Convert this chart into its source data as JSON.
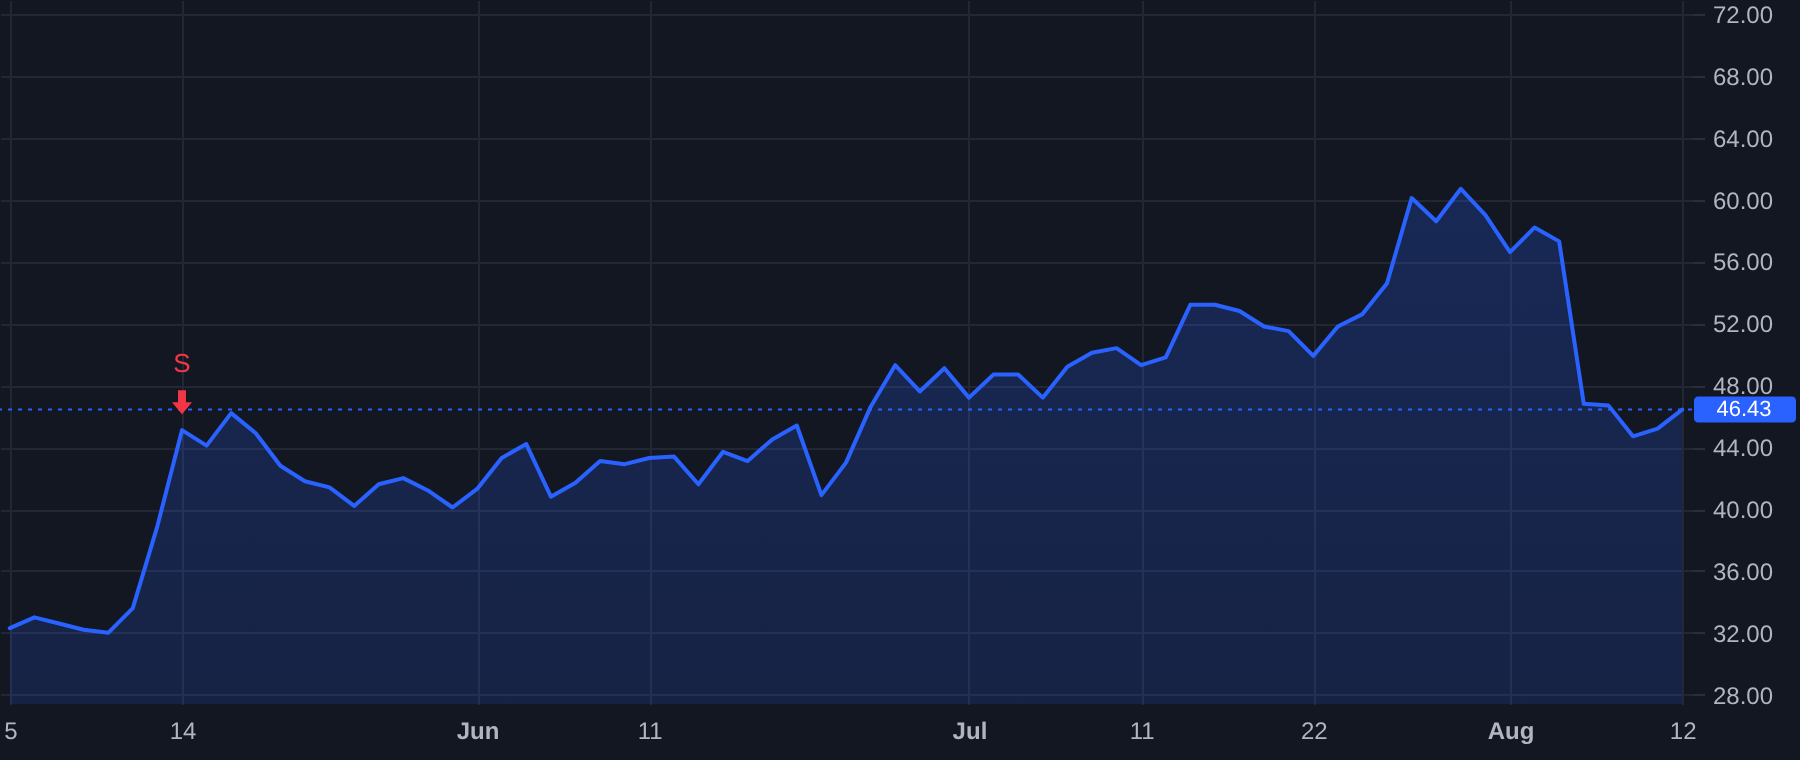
{
  "chart_data": {
    "type": "area",
    "categories": [
      "5",
      null,
      null,
      null,
      null,
      null,
      null,
      "14",
      null,
      null,
      null,
      null,
      null,
      null,
      null,
      null,
      null,
      null,
      null,
      "Jun",
      null,
      null,
      null,
      null,
      null,
      null,
      "11",
      null,
      null,
      null,
      null,
      null,
      null,
      null,
      null,
      null,
      null,
      null,
      null,
      "Jul",
      null,
      null,
      null,
      null,
      null,
      null,
      "11",
      null,
      null,
      null,
      null,
      null,
      null,
      "22",
      null,
      null,
      null,
      null,
      null,
      null,
      null,
      "Aug",
      null,
      null,
      null,
      null,
      null,
      null,
      "12"
    ],
    "series": [
      {
        "color": "#2962ff",
        "values": [
          32.3,
          33.0,
          32.6,
          32.2,
          32.0,
          33.6,
          38.9,
          45.1,
          44.1,
          46.2,
          44.9,
          42.8,
          41.8,
          41.4,
          40.2,
          41.6,
          42.0,
          41.2,
          40.1,
          41.3,
          43.3,
          44.2,
          40.8,
          41.7,
          43.1,
          42.9,
          43.3,
          43.4,
          41.6,
          43.7,
          43.1,
          44.5,
          45.4,
          40.9,
          43.0,
          46.6,
          49.3,
          47.6,
          49.1,
          47.2,
          48.7,
          48.7,
          47.2,
          49.2,
          50.1,
          50.4,
          49.3,
          49.8,
          53.2,
          53.2,
          52.8,
          51.8,
          51.5,
          49.9,
          51.8,
          52.6,
          54.6,
          60.1,
          58.6,
          60.7,
          59.0,
          56.6,
          58.2,
          57.3,
          46.8,
          46.7,
          44.7,
          45.2,
          46.43
        ]
      }
    ],
    "ylim": [
      27.4,
      72.9
    ],
    "yticks": [
      {
        "value": 28,
        "label": "28.00"
      },
      {
        "value": 32,
        "label": "32.00"
      },
      {
        "value": 36,
        "label": "36.00"
      },
      {
        "value": 40,
        "label": "40.00"
      },
      {
        "value": 44,
        "label": "44.00"
      },
      {
        "value": 48,
        "label": "48.00"
      },
      {
        "value": 52,
        "label": "52.00"
      },
      {
        "value": 56,
        "label": "56.00"
      },
      {
        "value": 60,
        "label": "60.00"
      },
      {
        "value": 64,
        "label": "64.00"
      },
      {
        "value": 68,
        "label": "68.00"
      },
      {
        "value": 72,
        "label": "72.00"
      }
    ],
    "grid": true,
    "ref_lines": [
      {
        "axis": "y",
        "value": 46.43,
        "label": "46.43",
        "color": "#2962ff",
        "line_style": "dotted"
      }
    ],
    "annotations": [
      {
        "text": "S",
        "x": "14",
        "y": 46.0
      }
    ]
  }
}
